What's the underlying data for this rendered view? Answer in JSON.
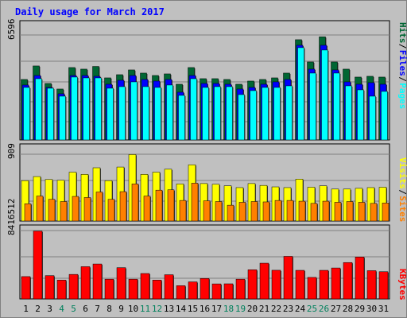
{
  "chart_data": [
    {
      "type": "bar",
      "panel": "hits-files-pages",
      "title": "Daily usage for March 2017",
      "ylabel_parts": [
        "Pages",
        "Files",
        "Hits"
      ],
      "ytick_label": "6596",
      "categories": [
        "1",
        "2",
        "3",
        "4",
        "5",
        "6",
        "7",
        "8",
        "9",
        "10",
        "11",
        "12",
        "13",
        "14",
        "15",
        "16",
        "17",
        "18",
        "19",
        "20",
        "21",
        "22",
        "23",
        "24",
        "25",
        "26",
        "27",
        "28",
        "29",
        "30",
        "31"
      ],
      "ylim": [
        0,
        6596
      ],
      "series": [
        {
          "name": "Hits",
          "color": "#006633",
          "values": [
            3800,
            4650,
            3550,
            3200,
            4550,
            4450,
            4620,
            3900,
            4100,
            4400,
            4200,
            4050,
            4150,
            3500,
            4550,
            3850,
            3850,
            3800,
            3500,
            3700,
            3800,
            3900,
            4200,
            6300,
            4900,
            6480,
            4900,
            4450,
            3950,
            4000,
            3950
          ]
        },
        {
          "name": "Files",
          "color": "#0000ff",
          "values": [
            3450,
            4050,
            3300,
            2900,
            4050,
            4050,
            4000,
            3500,
            3750,
            4050,
            3800,
            3700,
            3800,
            3000,
            4050,
            3550,
            3550,
            3500,
            3200,
            3300,
            3500,
            3650,
            3800,
            5950,
            4450,
            5950,
            4400,
            3650,
            3500,
            3600,
            3500
          ]
        },
        {
          "name": "Pages",
          "color": "#00ffff",
          "values": [
            3300,
            3850,
            3250,
            2750,
            3950,
            3900,
            3900,
            3250,
            3350,
            3650,
            3350,
            3300,
            3450,
            2800,
            3850,
            3300,
            3350,
            3350,
            2850,
            3100,
            3300,
            3300,
            3400,
            5800,
            4200,
            5650,
            4200,
            3400,
            3150,
            2750,
            3050
          ]
        }
      ]
    },
    {
      "type": "bar",
      "panel": "visits-sites",
      "ylabel_parts": [
        "Sites",
        "Visits"
      ],
      "ytick_label": "909",
      "categories": [
        "1",
        "2",
        "3",
        "4",
        "5",
        "6",
        "7",
        "8",
        "9",
        "10",
        "11",
        "12",
        "13",
        "14",
        "15",
        "16",
        "17",
        "18",
        "19",
        "20",
        "21",
        "22",
        "23",
        "24",
        "25",
        "26",
        "27",
        "28",
        "29",
        "30",
        "31"
      ],
      "ylim": [
        0,
        909
      ],
      "series": [
        {
          "name": "Visits",
          "color": "#ffff00",
          "values": [
            550,
            605,
            565,
            555,
            665,
            635,
            725,
            550,
            735,
            905,
            635,
            665,
            705,
            505,
            765,
            510,
            500,
            480,
            455,
            510,
            485,
            465,
            455,
            570,
            460,
            480,
            435,
            435,
            445,
            455,
            460
          ]
        },
        {
          "name": "Sites",
          "color": "#ff8000",
          "values": [
            235,
            340,
            295,
            265,
            335,
            320,
            395,
            295,
            400,
            505,
            340,
            420,
            425,
            280,
            515,
            275,
            265,
            215,
            255,
            265,
            260,
            280,
            280,
            270,
            240,
            270,
            255,
            265,
            255,
            240,
            245
          ]
        }
      ]
    },
    {
      "type": "bar",
      "panel": "kbytes",
      "ylabel_parts": [
        "KBytes"
      ],
      "ytick_label": "8416512",
      "categories": [
        "1",
        "2",
        "3",
        "4",
        "5",
        "6",
        "7",
        "8",
        "9",
        "10",
        "11",
        "12",
        "13",
        "14",
        "15",
        "16",
        "17",
        "18",
        "19",
        "20",
        "21",
        "22",
        "23",
        "24",
        "25",
        "26",
        "27",
        "28",
        "29",
        "30",
        "31"
      ],
      "ylim": [
        0,
        8416512
      ],
      "series": [
        {
          "name": "KBytes",
          "color": "#ff0000",
          "values": [
            2750000,
            8350000,
            2870000,
            2320000,
            3020000,
            3970000,
            4300000,
            2430000,
            3850000,
            2430000,
            3130000,
            2320000,
            2980000,
            1630000,
            2100000,
            2520000,
            1850000,
            1860000,
            2430000,
            3590000,
            4400000,
            3530000,
            5240000,
            3520000,
            2650000,
            3520000,
            3810000,
            4480000,
            5160000,
            3480000,
            3350000
          ]
        }
      ]
    }
  ],
  "weekend_days": [
    "4",
    "5",
    "11",
    "12",
    "18",
    "19",
    "25",
    "26"
  ],
  "colors": {
    "background": "#c0c0c0",
    "plot_background": "#c0c0c0",
    "title_color": "#0000ff",
    "weekday_label": "#000000",
    "weekend_label": "#00805c",
    "hits": "#006633",
    "files": "#0000ff",
    "pages": "#00ffff",
    "visits": "#ffff00",
    "sites": "#ff8000",
    "kbytes": "#ff0000"
  }
}
